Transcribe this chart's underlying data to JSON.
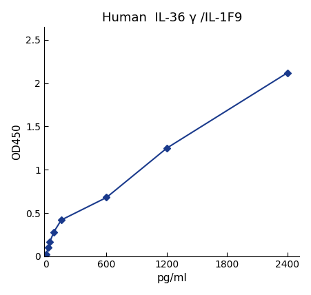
{
  "title": "Human  IL-36 γ /IL-1F9",
  "xlabel": "pg/ml",
  "ylabel": "OD450",
  "x_data": [
    0,
    18.75,
    37.5,
    75,
    150,
    600,
    1200,
    2400
  ],
  "y_data": [
    0.02,
    0.1,
    0.17,
    0.28,
    0.42,
    0.68,
    1.25,
    2.12
  ],
  "xlim": [
    -20,
    2520
  ],
  "ylim": [
    0,
    2.65
  ],
  "xticks": [
    0,
    600,
    1200,
    1800,
    2400
  ],
  "yticks": [
    0,
    0.5,
    1.0,
    1.5,
    2.0,
    2.5
  ],
  "ytick_labels": [
    "0",
    "0.5",
    "1",
    "1.5",
    "2",
    "2.5"
  ],
  "line_color": "#1a3a8c",
  "marker_color": "#1a3a8c",
  "marker": "D",
  "marker_size": 5,
  "line_width": 1.5,
  "title_fontsize": 13,
  "label_fontsize": 11,
  "tick_fontsize": 10,
  "bg_color": "#ffffff",
  "fig_bg_color": "#ffffff"
}
